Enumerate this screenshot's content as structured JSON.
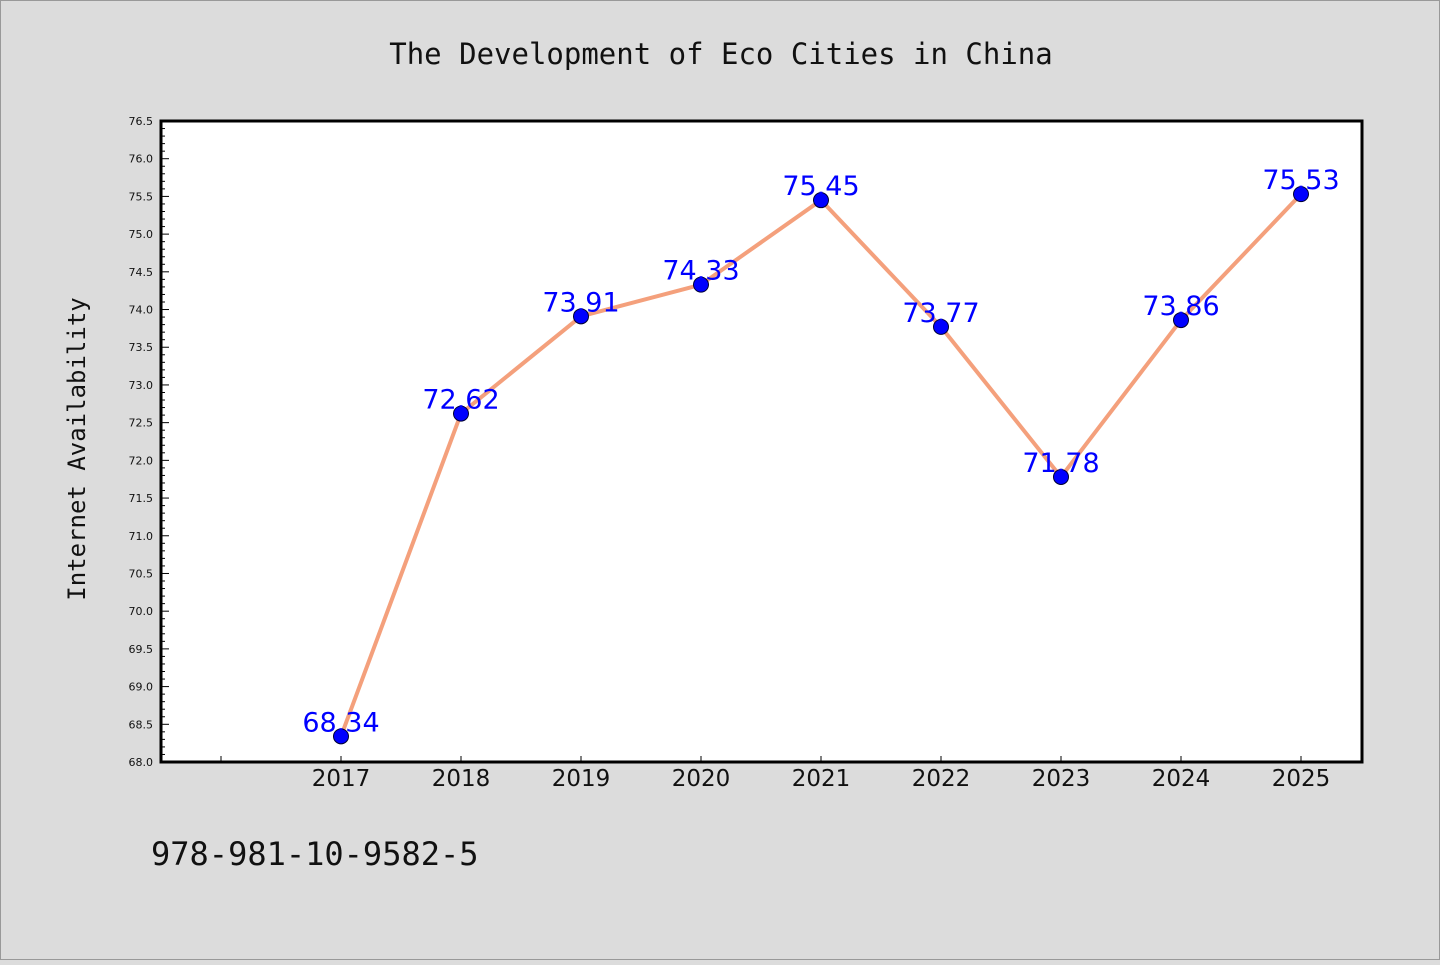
{
  "chart_data": {
    "type": "line",
    "title": "The Development of Eco Cities in China",
    "xlabel": "",
    "ylabel": "Internet Availability",
    "categories": [
      "2017",
      "2018",
      "2019",
      "2020",
      "2021",
      "2022",
      "2023",
      "2024",
      "2025"
    ],
    "series": [
      {
        "values": [
          68.34,
          72.62,
          73.91,
          74.33,
          75.45,
          73.77,
          71.78,
          73.86,
          75.53
        ],
        "labels": [
          "68.34",
          "72.62",
          "73.91",
          "74.33",
          "75.45",
          "73.77",
          "71.78",
          "73.86",
          "75.53"
        ],
        "line_color": "#f4a07c",
        "marker_color": "#0000ff",
        "label_color": "#0000ff"
      }
    ],
    "ylim": [
      68.0,
      76.5
    ],
    "yticks": [
      "68.0",
      "68.5",
      "69.0",
      "69.5",
      "70.0",
      "70.5",
      "71.0",
      "71.5",
      "72.0",
      "72.5",
      "73.0",
      "73.5",
      "74.0",
      "74.5",
      "75.0",
      "75.5",
      "76.0",
      "76.5"
    ],
    "grid": false,
    "legend": "none"
  },
  "footer": {
    "isbn": "978-981-10-9582-5"
  },
  "colors": {
    "background": "#dcdcdc",
    "plot_background": "#ffffff"
  }
}
